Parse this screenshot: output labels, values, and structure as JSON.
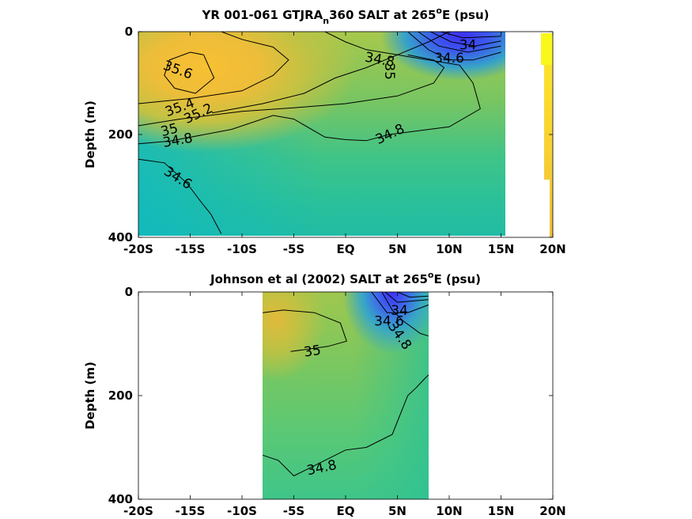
{
  "chart_data": [
    {
      "type": "heatmap",
      "title": {
        "prefix": "YR 001-061 GTJRA",
        "subscript": "n",
        "mid": "360 SALT at 265",
        "superscript": "o",
        "suffix": "E (psu)"
      },
      "ylabel": "Depth (m)",
      "x_ticks": [
        "-20S",
        "-15S",
        "-10S",
        "-5S",
        "EQ",
        "5N",
        "10N",
        "15N",
        "20N"
      ],
      "x_tick_values": [
        -20,
        -15,
        -10,
        -5,
        0,
        5,
        10,
        15,
        20
      ],
      "y_ticks": [
        "0",
        "200",
        "400"
      ],
      "y_tick_values": [
        0,
        200,
        400
      ],
      "xlim": [
        -20,
        20
      ],
      "ylim": [
        400,
        0
      ],
      "data_extent_x": [
        -20,
        15
      ],
      "grid": false,
      "colorbar_strip": true,
      "contour_labels": [
        {
          "text": "35.6",
          "x": -16.2,
          "y": 75,
          "angle": 20
        },
        {
          "text": "35.4",
          "x": -16.0,
          "y": 148,
          "angle": -20
        },
        {
          "text": "35.2",
          "x": -14.2,
          "y": 160,
          "angle": -25
        },
        {
          "text": "35",
          "x": -17.0,
          "y": 192,
          "angle": -15
        },
        {
          "text": "34.8",
          "x": -16.2,
          "y": 212,
          "angle": -10
        },
        {
          "text": "34.6",
          "x": -16.2,
          "y": 285,
          "angle": 32
        },
        {
          "text": "34.8",
          "x": 4.3,
          "y": 200,
          "angle": -25
        },
        {
          "text": "34.8",
          "x": 3.3,
          "y": 55,
          "angle": 10
        },
        {
          "text": "35",
          "x": 4.2,
          "y": 77,
          "angle": 90
        },
        {
          "text": "34.6",
          "x": 10.0,
          "y": 52,
          "angle": 0
        },
        {
          "text": "34",
          "x": 11.8,
          "y": 27,
          "angle": 0
        }
      ],
      "contours": [
        {
          "level": 35.6,
          "points": [
            [
              -13.7,
              45
            ],
            [
              -12.7,
              90
            ],
            [
              -14.5,
              120
            ],
            [
              -16.5,
              110
            ],
            [
              -17.5,
              85
            ],
            [
              -17,
              55
            ],
            [
              -15,
              40
            ],
            [
              -13.7,
              45
            ]
          ]
        },
        {
          "level": 35.4,
          "points": [
            [
              -20,
              140
            ],
            [
              -15,
              130
            ],
            [
              -10,
              115
            ],
            [
              -7,
              85
            ],
            [
              -5.5,
              55
            ],
            [
              -7,
              30
            ],
            [
              -10,
              15
            ],
            [
              -12,
              0
            ]
          ]
        },
        {
          "level": 35.2,
          "points": [
            [
              -12.9,
              158
            ],
            [
              -8,
              140
            ],
            [
              -4,
              120
            ],
            [
              -1,
              90
            ],
            [
              2,
              70
            ],
            [
              5,
              45
            ],
            [
              8,
              20
            ],
            [
              10,
              0
            ]
          ]
        },
        {
          "level": 35.0,
          "points": [
            [
              -20,
              183
            ],
            [
              -16,
              170
            ],
            [
              -10,
              155
            ],
            [
              -5,
              148
            ],
            [
              0,
              140
            ],
            [
              5,
              125
            ],
            [
              8.5,
              100
            ],
            [
              9.5,
              70
            ],
            [
              8.5,
              55
            ],
            [
              6,
              45
            ]
          ]
        },
        {
          "level": 34.8,
          "points": [
            [
              -20,
              218
            ],
            [
              -17,
              213
            ],
            [
              -11,
              190
            ],
            [
              -7,
              163
            ],
            [
              -5,
              170
            ],
            [
              -2,
              205
            ],
            [
              0,
              210
            ],
            [
              2,
              212
            ],
            [
              4.2,
              200
            ],
            [
              10,
              185
            ],
            [
              13,
              150
            ],
            [
              12.3,
              100
            ],
            [
              11,
              65
            ],
            [
              8,
              55
            ],
            [
              5,
              45
            ],
            [
              2,
              35
            ],
            [
              0,
              20
            ],
            [
              -2,
              0
            ]
          ]
        },
        {
          "level": 34.6,
          "points": [
            [
              -20,
              248
            ],
            [
              -17.5,
              255
            ],
            [
              -15.3,
              295
            ],
            [
              -14,
              330
            ],
            [
              -13,
              355
            ],
            [
              -12,
              393
            ]
          ]
        },
        {
          "level": 34.4,
          "points": [
            [
              6,
              0
            ],
            [
              8,
              35
            ],
            [
              10,
              55
            ],
            [
              12.3,
              55
            ],
            [
              15,
              40
            ]
          ]
        },
        {
          "level": 34.2,
          "points": [
            [
              7,
              0
            ],
            [
              9,
              28
            ],
            [
              11.8,
              40
            ],
            [
              15,
              28
            ]
          ]
        },
        {
          "level": 34.0,
          "points": [
            [
              8.2,
              0
            ],
            [
              10.2,
              20
            ],
            [
              12.5,
              28
            ],
            [
              15,
              18
            ]
          ]
        },
        {
          "level": 33.8,
          "points": [
            [
              9.2,
              0
            ],
            [
              11.3,
              12
            ],
            [
              15,
              9
            ]
          ]
        }
      ]
    },
    {
      "type": "heatmap",
      "title": {
        "prefix": "Johnson et al (2002) SALT at 265",
        "subscript": "",
        "mid": "",
        "superscript": "o",
        "suffix": "E (psu)"
      },
      "ylabel": "Depth (m)",
      "x_ticks": [
        "-20S",
        "-15S",
        "-10S",
        "-5S",
        "EQ",
        "5N",
        "10N",
        "15N",
        "20N"
      ],
      "x_tick_values": [
        -20,
        -15,
        -10,
        -5,
        0,
        5,
        10,
        15,
        20
      ],
      "y_ticks": [
        "0",
        "200",
        "400"
      ],
      "y_tick_values": [
        0,
        200,
        400
      ],
      "xlim": [
        -20,
        20
      ],
      "ylim": [
        400,
        0
      ],
      "data_extent_x": [
        -8,
        8
      ],
      "grid": false,
      "colorbar_strip": false,
      "contour_labels": [
        {
          "text": "35",
          "x": -3.2,
          "y": 115,
          "angle": -8
        },
        {
          "text": "34.6",
          "x": 4.2,
          "y": 57,
          "angle": 0
        },
        {
          "text": "34",
          "x": 5.2,
          "y": 37,
          "angle": 0
        },
        {
          "text": "34.8",
          "x": 5.2,
          "y": 85,
          "angle": 55
        },
        {
          "text": "34.8",
          "x": -2.3,
          "y": 340,
          "angle": -12
        }
      ],
      "contours": [
        {
          "level": 35.0,
          "points": [
            [
              -5.3,
              115
            ],
            [
              -1.7,
              105
            ],
            [
              0.1,
              95
            ],
            [
              -0.5,
              60
            ],
            [
              -3,
              40
            ],
            [
              -6,
              35
            ],
            [
              -8,
              40
            ]
          ]
        },
        {
          "level": 34.8,
          "points": [
            [
              -8,
              315
            ],
            [
              -6.5,
              325
            ],
            [
              -5,
              355
            ],
            [
              0,
              305
            ],
            [
              2,
              300
            ],
            [
              4.5,
              275
            ],
            [
              6,
              200
            ],
            [
              6.8,
              185
            ],
            [
              7.5,
              170
            ],
            [
              8,
              160
            ]
          ]
        },
        {
          "level": 34.8,
          "points": [
            [
              3.5,
              0
            ],
            [
              4.5,
              35
            ],
            [
              5.5,
              55
            ],
            [
              7.2,
              80
            ],
            [
              8,
              85
            ]
          ]
        },
        {
          "level": 34.6,
          "points": [
            [
              2.5,
              0
            ],
            [
              4,
              40
            ],
            [
              6,
              40
            ],
            [
              8,
              25
            ]
          ]
        },
        {
          "level": 34.4,
          "points": [
            [
              3.8,
              0
            ],
            [
              5,
              20
            ],
            [
              8,
              15
            ]
          ]
        },
        {
          "level": 34.2,
          "points": [
            [
              5,
              0
            ],
            [
              6.2,
              10
            ],
            [
              8,
              8
            ]
          ]
        }
      ]
    }
  ]
}
